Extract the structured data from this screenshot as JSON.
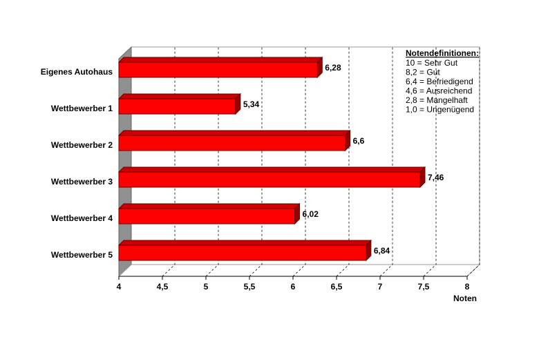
{
  "chart_data": {
    "type": "bar",
    "orientation": "horizontal",
    "x_label": "Noten",
    "categories": [
      "Eigenes Autohaus",
      "Wettbewerber 1",
      "Wettbewerber 2",
      "Wettbewerber 3",
      "Wettbewerber 4",
      "Wettbewerber 5"
    ],
    "values": [
      6.28,
      5.34,
      6.6,
      7.46,
      6.02,
      6.84
    ],
    "value_labels": [
      "6,28",
      "5,34",
      "6,6",
      "7,46",
      "6,02",
      "6,84"
    ],
    "color": "#ff0000",
    "xlim": [
      4,
      8
    ],
    "xticks": [
      4,
      {
        "value": 4.5,
        "label": "4,5"
      },
      5,
      {
        "value": 5.5,
        "label": "5,5"
      },
      6,
      {
        "value": 6.5,
        "label": "6,5"
      },
      7,
      {
        "value": 7.5,
        "label": "7,5"
      },
      8
    ],
    "grid": true,
    "annotation_title": "Notendefinitionen:",
    "annotations": [
      "10  = Sehr Gut",
      "8,2 = Gut",
      "6,4 = Befriedigend",
      "4,6 = Ausreichend",
      "2,8 = Mangelhaft",
      "1,0 = Ungenügend"
    ]
  }
}
